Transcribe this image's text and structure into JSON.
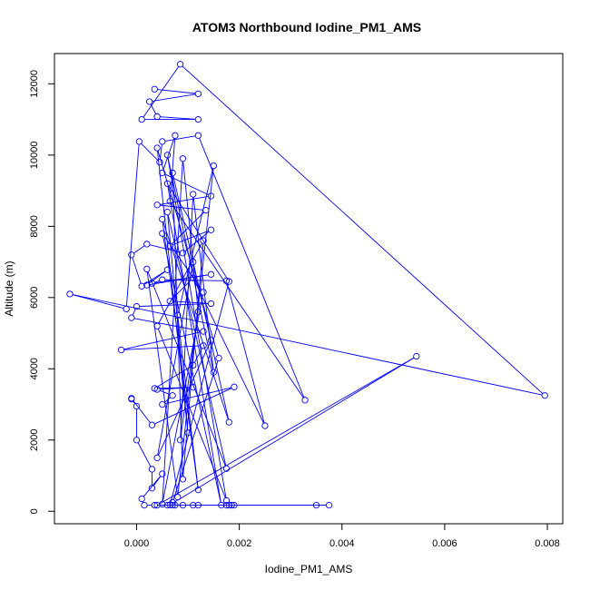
{
  "chart_data": {
    "type": "line",
    "title": "ATOM3 Northbound Iodine_PM1_AMS",
    "xlabel": "Iodine_PM1_AMS",
    "ylabel": "Altitude (m)",
    "xlim": [
      -0.0016,
      0.0083
    ],
    "ylim": [
      -350,
      12850
    ],
    "x_ticks": [
      0.0,
      0.002,
      0.004,
      0.006,
      0.008
    ],
    "x_tick_labels": [
      "0.000",
      "0.002",
      "0.004",
      "0.006",
      "0.008"
    ],
    "y_ticks": [
      0,
      2000,
      4000,
      6000,
      8000,
      10000,
      12000
    ],
    "y_tick_labels": [
      "0",
      "2000",
      "4000",
      "6000",
      "8000",
      "10000",
      "12000"
    ],
    "marker": "open-circle",
    "color": "#0000ff",
    "grid": false,
    "series": [
      {
        "points": [
          [
            0.00035,
            11850
          ],
          [
            0.0012,
            11720
          ],
          [
            0.00025,
            11500
          ],
          [
            0.0004,
            11080
          ],
          [
            0.0012,
            11000
          ],
          [
            0.0001,
            11000
          ],
          [
            0.00085,
            12550
          ],
          [
            0.00795,
            3250
          ],
          [
            -0.0013,
            6100
          ],
          [
            -0.0002,
            5680
          ],
          [
            5e-05,
            10380
          ],
          [
            0.00045,
            9800
          ],
          [
            0.0005,
            10380
          ],
          [
            0.0012,
            10550
          ],
          [
            0.00328,
            3120
          ],
          [
            0.00065,
            8700
          ],
          [
            0.00075,
            10550
          ],
          [
            0.0005,
            9500
          ],
          [
            0.00145,
            8850
          ],
          [
            0.0004,
            8600
          ],
          [
            0.00135,
            8450
          ],
          [
            0.00065,
            7450
          ],
          [
            0.00145,
            7900
          ],
          [
            0.0009,
            7250
          ],
          [
            0.0002,
            7500
          ],
          [
            -0.0001,
            7200
          ],
          [
            0.0001,
            6320
          ],
          [
            0.0006,
            6780
          ],
          [
            0.0002,
            6350
          ],
          [
            0.00145,
            6650
          ],
          [
            0.0003,
            6400
          ],
          [
            0.0005,
            6500
          ],
          [
            0.00175,
            6470
          ],
          [
            0.0025,
            2400
          ],
          [
            0.0011,
            6550
          ],
          [
            0.00065,
            5900
          ],
          [
            0.00145,
            5830
          ],
          [
            0.0,
            5750
          ],
          [
            -0.0001,
            5430
          ],
          [
            0.0013,
            5050
          ],
          [
            -0.0003,
            4530
          ],
          [
            0.0013,
            4650
          ],
          [
            0.0011,
            4100
          ],
          [
            0.00035,
            3450
          ],
          [
            0.0011,
            3480
          ],
          [
            0.0004,
            3420
          ],
          [
            0.0007,
            3250
          ],
          [
            0.0005,
            3000
          ],
          [
            0.0019,
            3490
          ],
          [
            0.0003,
            2420
          ],
          [
            -0.0001,
            3170
          ],
          [
            -0.0001,
            3150
          ],
          [
            0.0,
            2950
          ],
          [
            0.0,
            2000
          ],
          [
            0.0003,
            1180
          ],
          [
            0.0003,
            650
          ],
          [
            0.0005,
            1050
          ],
          [
            0.0001,
            350
          ],
          [
            0.00015,
            170
          ],
          [
            0.00035,
            170
          ],
          [
            0.0006,
            170
          ],
          [
            0.0007,
            170
          ],
          [
            0.00075,
            170
          ],
          [
            0.0009,
            170
          ],
          [
            0.0011,
            170
          ],
          [
            0.0012,
            170
          ],
          [
            0.00175,
            170
          ],
          [
            0.0018,
            170
          ],
          [
            0.00185,
            170
          ],
          [
            0.0019,
            170
          ],
          [
            0.0035,
            170
          ],
          [
            0.00375,
            170
          ],
          [
            0.0004,
            170
          ],
          [
            0.00545,
            4350
          ],
          [
            0.00065,
            180
          ],
          [
            0.0018,
            6450
          ],
          [
            0.0006,
            9200
          ],
          [
            0.00165,
            170
          ],
          [
            0.0005,
            7800
          ],
          [
            0.0013,
            6150
          ],
          [
            0.0005,
            200
          ],
          [
            0.0009,
            9900
          ],
          [
            0.0012,
            5600
          ],
          [
            0.00085,
            2000
          ],
          [
            0.0011,
            8900
          ],
          [
            0.0015,
            3900
          ],
          [
            0.0006,
            10000
          ],
          [
            0.00175,
            300
          ],
          [
            0.0004,
            5200
          ],
          [
            0.0013,
            7600
          ],
          [
            0.0009,
            900
          ],
          [
            0.0007,
            9500
          ],
          [
            0.00145,
            4800
          ],
          [
            0.0004,
            1500
          ],
          [
            0.0011,
            7000
          ],
          [
            0.0018,
            2500
          ],
          [
            0.0005,
            8200
          ],
          [
            0.0012,
            600
          ],
          [
            0.0008,
            5500
          ],
          [
            0.0015,
            9700
          ],
          [
            0.0008,
            400
          ],
          [
            0.0002,
            6800
          ],
          [
            0.00175,
            1200
          ],
          [
            0.0006,
            8400
          ],
          [
            0.001,
            2200
          ],
          [
            0.0004,
            10200
          ],
          [
            0.0016,
            4300
          ],
          [
            0.0007,
            250
          ]
        ]
      }
    ]
  }
}
